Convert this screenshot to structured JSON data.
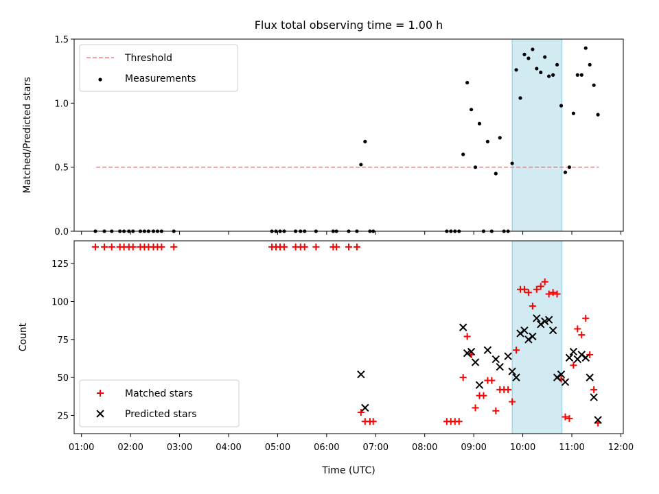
{
  "title": "Flux total observing time = 1.00 h",
  "colors": {
    "threshold": "#ff7f7f",
    "measurement": "#000000",
    "matched": "#ff0000",
    "predicted": "#000000",
    "span": "#add8e6"
  },
  "chart_data": [
    {
      "type": "scatter",
      "ylabel": "Matched/Predicted stars",
      "xlim_hours": [
        0.85,
        12.05
      ],
      "ylim": [
        0,
        1.5
      ],
      "yticks": [
        "0.0",
        "0.5",
        "1.0",
        "1.5"
      ],
      "legend_position": "top-left",
      "highlight_span": [
        "09:47",
        "10:48"
      ],
      "series": [
        {
          "name": "Threshold",
          "style": "dashed-line",
          "x": [
            "01:18",
            "11:33"
          ],
          "y": [
            0.5,
            0.5
          ]
        },
        {
          "name": "Measurements",
          "style": "dot",
          "x": [
            "01:17",
            "01:28",
            "01:37",
            "01:47",
            "01:52",
            "01:58",
            "02:03",
            "02:12",
            "02:17",
            "02:22",
            "02:28",
            "02:33",
            "02:38",
            "02:53",
            "04:53",
            "04:58",
            "05:03",
            "05:08",
            "05:22",
            "05:28",
            "05:33",
            "05:47",
            "06:08",
            "06:12",
            "06:27",
            "06:37",
            "06:42",
            "06:47",
            "06:53",
            "06:57",
            "08:27",
            "08:32",
            "08:37",
            "08:42",
            "08:47",
            "08:52",
            "08:57",
            "09:02",
            "09:07",
            "09:12",
            "09:17",
            "09:22",
            "09:27",
            "09:32",
            "09:37",
            "09:42",
            "09:47",
            "09:52",
            "09:57",
            "10:02",
            "10:07",
            "10:12",
            "10:17",
            "10:22",
            "10:27",
            "10:32",
            "10:37",
            "10:42",
            "10:47",
            "10:52",
            "10:57",
            "11:02",
            "11:07",
            "11:12",
            "11:17",
            "11:22",
            "11:27",
            "11:32"
          ],
          "y": [
            0,
            0,
            0,
            0,
            0,
            0,
            0,
            0,
            0,
            0,
            0,
            0,
            0,
            0,
            0,
            0,
            0,
            0,
            0,
            0,
            0,
            0,
            0,
            0,
            0,
            0,
            0.52,
            0.7,
            0,
            0,
            0,
            0,
            0,
            0,
            0.6,
            1.16,
            0.95,
            0.5,
            0.84,
            0,
            0.7,
            0,
            0.45,
            0.73,
            0,
            0,
            0.53,
            1.26,
            1.04,
            1.38,
            1.35,
            1.42,
            1.27,
            1.24,
            1.36,
            1.21,
            1.22,
            1.3,
            0.98,
            0.46,
            0.5,
            0.92,
            1.22,
            1.22,
            1.43,
            1.3,
            1.14,
            0.91
          ]
        }
      ]
    },
    {
      "type": "scatter",
      "xlabel": "Time (UTC)",
      "ylabel": "Count",
      "xlim_hours": [
        0.85,
        12.05
      ],
      "ylim": [
        13,
        140
      ],
      "yticks": [
        "25",
        "50",
        "75",
        "100",
        "125"
      ],
      "xticks": [
        "01:00",
        "02:00",
        "03:00",
        "04:00",
        "05:00",
        "06:00",
        "07:00",
        "08:00",
        "09:00",
        "10:00",
        "11:00",
        "12:00"
      ],
      "legend_position": "lower-left",
      "highlight_span": [
        "09:47",
        "10:48"
      ],
      "series": [
        {
          "name": "Matched stars",
          "style": "plus",
          "x": [
            "01:17",
            "01:28",
            "01:37",
            "01:47",
            "01:52",
            "01:58",
            "02:03",
            "02:12",
            "02:17",
            "02:22",
            "02:28",
            "02:33",
            "02:38",
            "02:53",
            "04:53",
            "04:58",
            "05:03",
            "05:08",
            "05:22",
            "05:28",
            "05:33",
            "05:47",
            "06:08",
            "06:12",
            "06:27",
            "06:37",
            "06:42",
            "06:47",
            "06:53",
            "06:57",
            "08:27",
            "08:32",
            "08:37",
            "08:42",
            "08:47",
            "08:52",
            "08:57",
            "09:02",
            "09:07",
            "09:12",
            "09:17",
            "09:22",
            "09:27",
            "09:32",
            "09:37",
            "09:42",
            "09:47",
            "09:52",
            "09:57",
            "10:02",
            "10:07",
            "10:12",
            "10:17",
            "10:22",
            "10:27",
            "10:32",
            "10:37",
            "10:42",
            "10:47",
            "10:52",
            "10:57",
            "11:02",
            "11:07",
            "11:12",
            "11:17",
            "11:22",
            "11:27",
            "11:32"
          ],
          "y": [
            136,
            136,
            136,
            136,
            136,
            136,
            136,
            136,
            136,
            136,
            136,
            136,
            136,
            136,
            136,
            136,
            136,
            136,
            136,
            136,
            136,
            136,
            136,
            136,
            136,
            136,
            27,
            21,
            21,
            21,
            21,
            21,
            21,
            21,
            50,
            77,
            65,
            30,
            38,
            38,
            48,
            48,
            28,
            42,
            42,
            42,
            34,
            68,
            108,
            108,
            106,
            97,
            108,
            110,
            113,
            105,
            106,
            105,
            49,
            24,
            23,
            58,
            82,
            78,
            89,
            65,
            42,
            20
          ]
        },
        {
          "name": "Predicted stars",
          "style": "x",
          "x": [
            "06:42",
            "06:47",
            "08:47",
            "08:52",
            "08:57",
            "09:02",
            "09:07",
            "09:17",
            "09:27",
            "09:32",
            "09:42",
            "09:47",
            "09:52",
            "09:57",
            "10:02",
            "10:07",
            "10:12",
            "10:17",
            "10:22",
            "10:27",
            "10:32",
            "10:37",
            "10:42",
            "10:47",
            "10:52",
            "10:57",
            "11:02",
            "11:07",
            "11:12",
            "11:17",
            "11:22",
            "11:27",
            "11:32"
          ],
          "y": [
            52,
            30,
            83,
            66,
            67,
            60,
            45,
            68,
            62,
            57,
            64,
            54,
            50,
            79,
            81,
            75,
            77,
            89,
            85,
            87,
            88,
            81,
            50,
            52,
            47,
            63,
            67,
            62,
            65,
            63,
            50,
            37,
            22
          ]
        }
      ]
    }
  ]
}
